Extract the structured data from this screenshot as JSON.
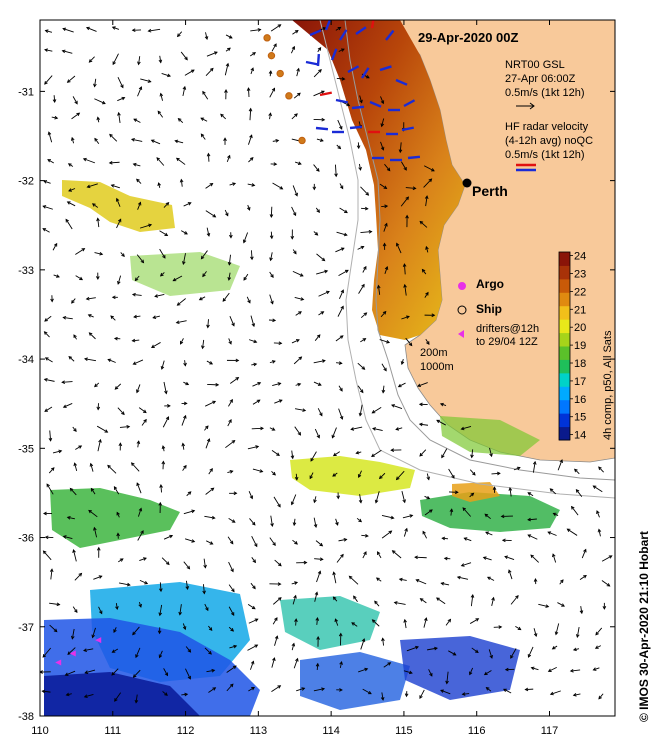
{
  "title": "29-Apr-2020 00Z",
  "map": {
    "lon_range": [
      110,
      117.9
    ],
    "lat_range": [
      -38,
      -30.2
    ],
    "x_ticks": [
      110,
      111,
      112,
      113,
      114,
      115,
      116,
      117
    ],
    "y_ticks": [
      -31,
      -32,
      -33,
      -34,
      -35,
      -36,
      -37,
      -38
    ],
    "land_color": "#f8c99a",
    "coast_color": "#8a8a8a",
    "arrow_color": "#000000",
    "hf_radar_colors": [
      "#1a2bd6",
      "#e01010"
    ]
  },
  "legend": {
    "model_line1": "NRT00 GSL",
    "model_line2": "27-Apr 06:00Z",
    "model_line3": "0.5m/s (1kt 12h)",
    "radar_line1": "HF radar velocity",
    "radar_line2": "(4-12h avg) noQC",
    "radar_line3": "0.5m/s (1kt 12h)",
    "argo_label": "Argo",
    "ship_label": "Ship",
    "drifters_line1": "drifters@12h",
    "drifters_line2": "to 29/04 12Z",
    "isobath1": "200m",
    "isobath2": "1000m"
  },
  "city": {
    "name": "Perth",
    "lon": 115.86,
    "lat": -31.95
  },
  "colorbar": {
    "min": 13.7,
    "max": 24.2,
    "ticks": [
      14,
      15,
      16,
      17,
      18,
      19,
      20,
      21,
      22,
      23,
      24
    ],
    "title": "4h comp, p50, All Sats",
    "colors": [
      "#0a1a8c",
      "#0033d8",
      "#0077ff",
      "#00aaff",
      "#00d2c8",
      "#1fbf5a",
      "#5bc12a",
      "#a6d41a",
      "#e8e81a",
      "#f2c01a",
      "#e08a10",
      "#c85a08",
      "#a83208",
      "#8a1408"
    ]
  },
  "argo_floats": [
    {
      "lon": 113.12,
      "lat": -30.4
    },
    {
      "lon": 113.18,
      "lat": -30.6
    },
    {
      "lon": 113.3,
      "lat": -30.8
    },
    {
      "lon": 113.42,
      "lat": -31.05
    },
    {
      "lon": 113.6,
      "lat": -31.55
    }
  ],
  "drifters": [
    {
      "lon": 110.25,
      "lat": -37.4
    },
    {
      "lon": 110.45,
      "lat": -37.3
    },
    {
      "lon": 110.8,
      "lat": -37.15
    }
  ],
  "credit": "© IMOS 30-Apr-2020 21:10 Hobart"
}
